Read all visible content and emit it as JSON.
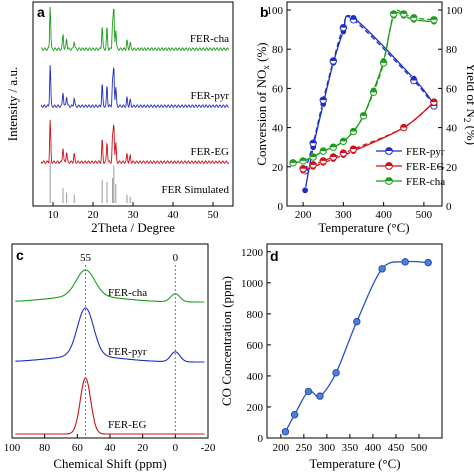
{
  "colors": {
    "blue": "#1f2fc4",
    "red": "#d0101a",
    "green": "#1b9e1b",
    "gray": "#9a9a9a",
    "curve": "#2a52c8",
    "marker": "#4a7fe0"
  },
  "chart_data": [
    {
      "panel": "a",
      "type": "line",
      "xlabel": "2Theta / Degree",
      "ylabel": "Intensity / a.u.",
      "xlim": [
        5,
        55
      ],
      "xticks": [
        10,
        20,
        30,
        40,
        50
      ],
      "series": [
        {
          "name": "FER-cha",
          "color": "green"
        },
        {
          "name": "FER-pyr",
          "color": "blue"
        },
        {
          "name": "FER-EG",
          "color": "red"
        },
        {
          "name": "FER Simulated",
          "color": "gray"
        }
      ],
      "peaks_2theta": [
        9.3,
        12.5,
        13.4,
        15.3,
        22.3,
        23.5,
        24.9,
        25.2,
        25.7,
        28.5,
        29.3
      ]
    },
    {
      "panel": "b",
      "type": "line",
      "xlabel": "Temperature (°C)",
      "ylabel": "Conversion of NOx (%)",
      "ylabel_right": "Yield of N2 (%)",
      "xlim": [
        160,
        545
      ],
      "ylim": [
        0,
        100
      ],
      "xticks": [
        200,
        300,
        400,
        500
      ],
      "yticks": [
        0,
        20,
        40,
        60,
        80,
        100
      ],
      "legend": "bottom-right",
      "series": [
        {
          "name": "FER-pyr",
          "color": "blue",
          "x": [
            205,
            225,
            250,
            275,
            300,
            325,
            475,
            525
          ],
          "y": [
            8,
            30,
            52,
            73,
            89,
            96,
            65,
            52
          ],
          "yield": [
            18,
            32,
            54,
            74,
            91,
            95,
            64,
            51
          ]
        },
        {
          "name": "FER-EG",
          "color": "red",
          "x": [
            200,
            225,
            250,
            275,
            300,
            325,
            450,
            525
          ],
          "y": [
            18,
            20,
            22,
            24,
            26,
            28,
            40,
            53
          ],
          "yield": [
            19,
            21,
            23,
            25,
            27,
            29,
            40,
            53
          ]
        },
        {
          "name": "FER-cha",
          "color": "green",
          "x": [
            175,
            200,
            225,
            250,
            275,
            300,
            325,
            350,
            375,
            400,
            425,
            450,
            475,
            525
          ],
          "y": [
            22,
            23,
            25,
            28,
            30,
            33,
            38,
            46,
            59,
            74,
            97,
            97,
            95,
            94
          ],
          "yield": [
            22,
            23,
            25,
            28,
            30,
            33,
            38,
            46,
            58,
            73,
            98,
            98,
            96,
            95
          ]
        }
      ]
    },
    {
      "panel": "c",
      "type": "line",
      "xlabel": "Chemical Shift (ppm)",
      "xlim": [
        100,
        -20
      ],
      "xticks": [
        100,
        80,
        60,
        40,
        20,
        0,
        -20
      ],
      "annotations": [
        "55",
        "0"
      ],
      "series": [
        {
          "name": "FER-cha",
          "color": "green"
        },
        {
          "name": "FER-pyr",
          "color": "blue"
        },
        {
          "name": "FER-EG",
          "color": "red"
        }
      ]
    },
    {
      "panel": "d",
      "type": "line",
      "xlabel": "Temperature (°C)",
      "ylabel": "CO Concentration (ppm)",
      "xlim": [
        170,
        550
      ],
      "ylim": [
        0,
        1250
      ],
      "xticks": [
        200,
        250,
        300,
        350,
        400,
        450,
        500
      ],
      "yticks": [
        0,
        200,
        400,
        600,
        800,
        1000,
        1200
      ],
      "x": [
        210,
        230,
        260,
        285,
        320,
        365,
        420,
        470,
        520
      ],
      "y": [
        40,
        150,
        300,
        270,
        420,
        750,
        1090,
        1135,
        1130
      ]
    }
  ]
}
